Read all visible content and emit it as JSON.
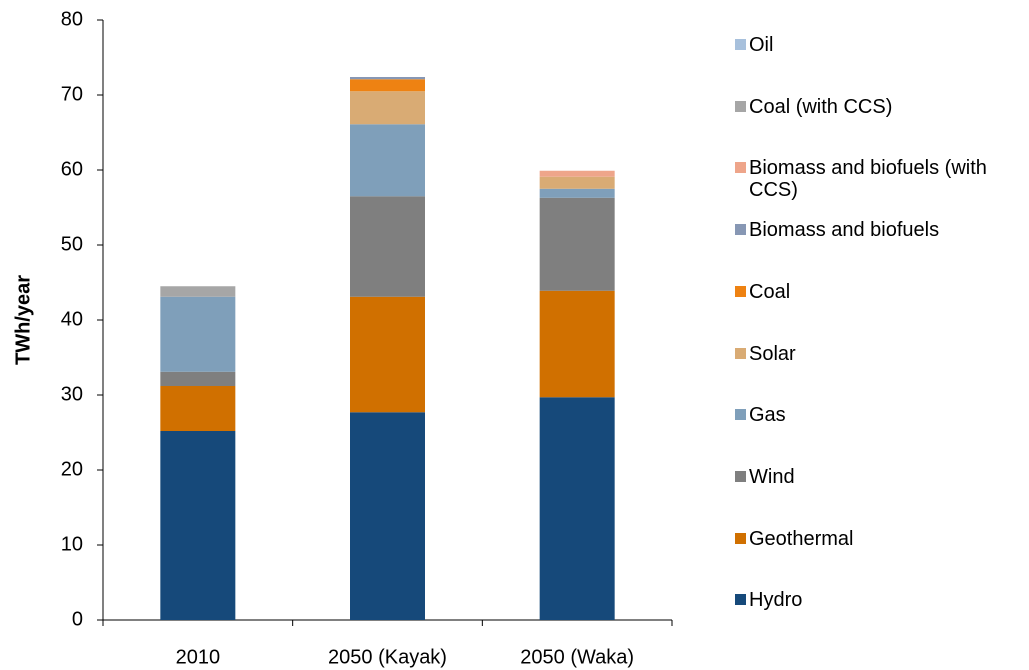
{
  "chart_data": {
    "type": "stacked_bar",
    "ylabel": "TWh/year",
    "categories": [
      "2010",
      "2050 (Kayak)",
      "2050 (Waka)"
    ],
    "ylim": [
      0,
      80
    ],
    "yticks": [
      0,
      10,
      20,
      30,
      40,
      50,
      60,
      70,
      80
    ],
    "legend": "right",
    "series": [
      {
        "name": "Hydro",
        "color": "#16497a",
        "values": [
          25.2,
          27.7,
          29.7
        ]
      },
      {
        "name": "Geothermal",
        "color": "#d07000",
        "values": [
          6.0,
          15.4,
          14.2
        ]
      },
      {
        "name": "Wind",
        "color": "#7f7f7f",
        "values": [
          1.9,
          13.4,
          12.4
        ]
      },
      {
        "name": "Gas",
        "color": "#7f9fba",
        "values": [
          10.0,
          9.6,
          1.2
        ]
      },
      {
        "name": "Solar",
        "color": "#d9ab74",
        "values": [
          0,
          4.4,
          1.6
        ]
      },
      {
        "name": "Coal",
        "color": "#ee8212",
        "values": [
          0,
          1.6,
          0
        ]
      },
      {
        "name": "Biomass and biofuels",
        "color": "#8797b4",
        "values": [
          0,
          0.3,
          0
        ]
      },
      {
        "name": "Biomass and biofuels (with CCS)",
        "color": "#eea58a",
        "values": [
          0,
          0,
          0.8
        ]
      },
      {
        "name": "Coal (with CCS)",
        "color": "#a6a6a6",
        "values": [
          1.4,
          0,
          0
        ]
      },
      {
        "name": "Oil",
        "color": "#a7c0dc",
        "values": [
          0,
          0,
          0
        ]
      }
    ]
  }
}
